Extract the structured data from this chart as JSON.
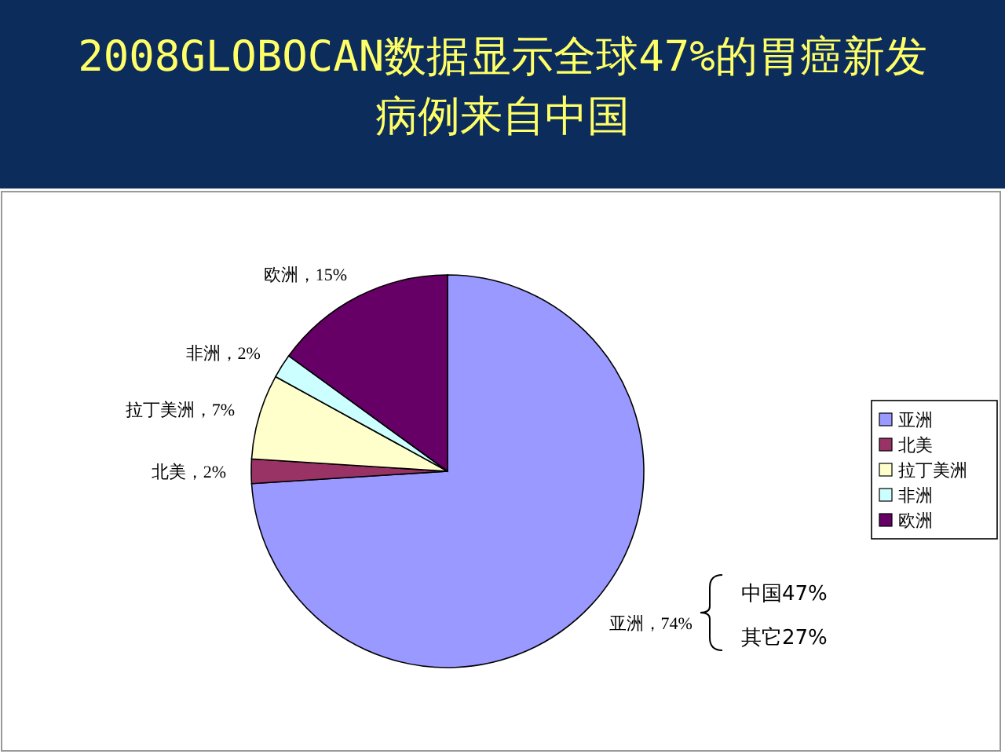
{
  "chart_data": {
    "type": "pie",
    "title": "2008GLOBOCAN数据显示全球47%的胃癌新发病例来自中国",
    "categories": [
      "亚洲",
      "北美",
      "拉丁美洲",
      "非洲",
      "欧洲"
    ],
    "values": [
      74,
      2,
      7,
      2,
      15
    ],
    "colors": [
      "#9999ff",
      "#993366",
      "#ffffcc",
      "#ccffff",
      "#660066"
    ],
    "value_labels": [
      "亚洲，74%",
      "北美，2%",
      "拉丁美洲，7%",
      "非洲，2%",
      "欧洲，15%"
    ],
    "annotations": [
      "中国47%",
      "其它27%"
    ],
    "legend": "right"
  }
}
